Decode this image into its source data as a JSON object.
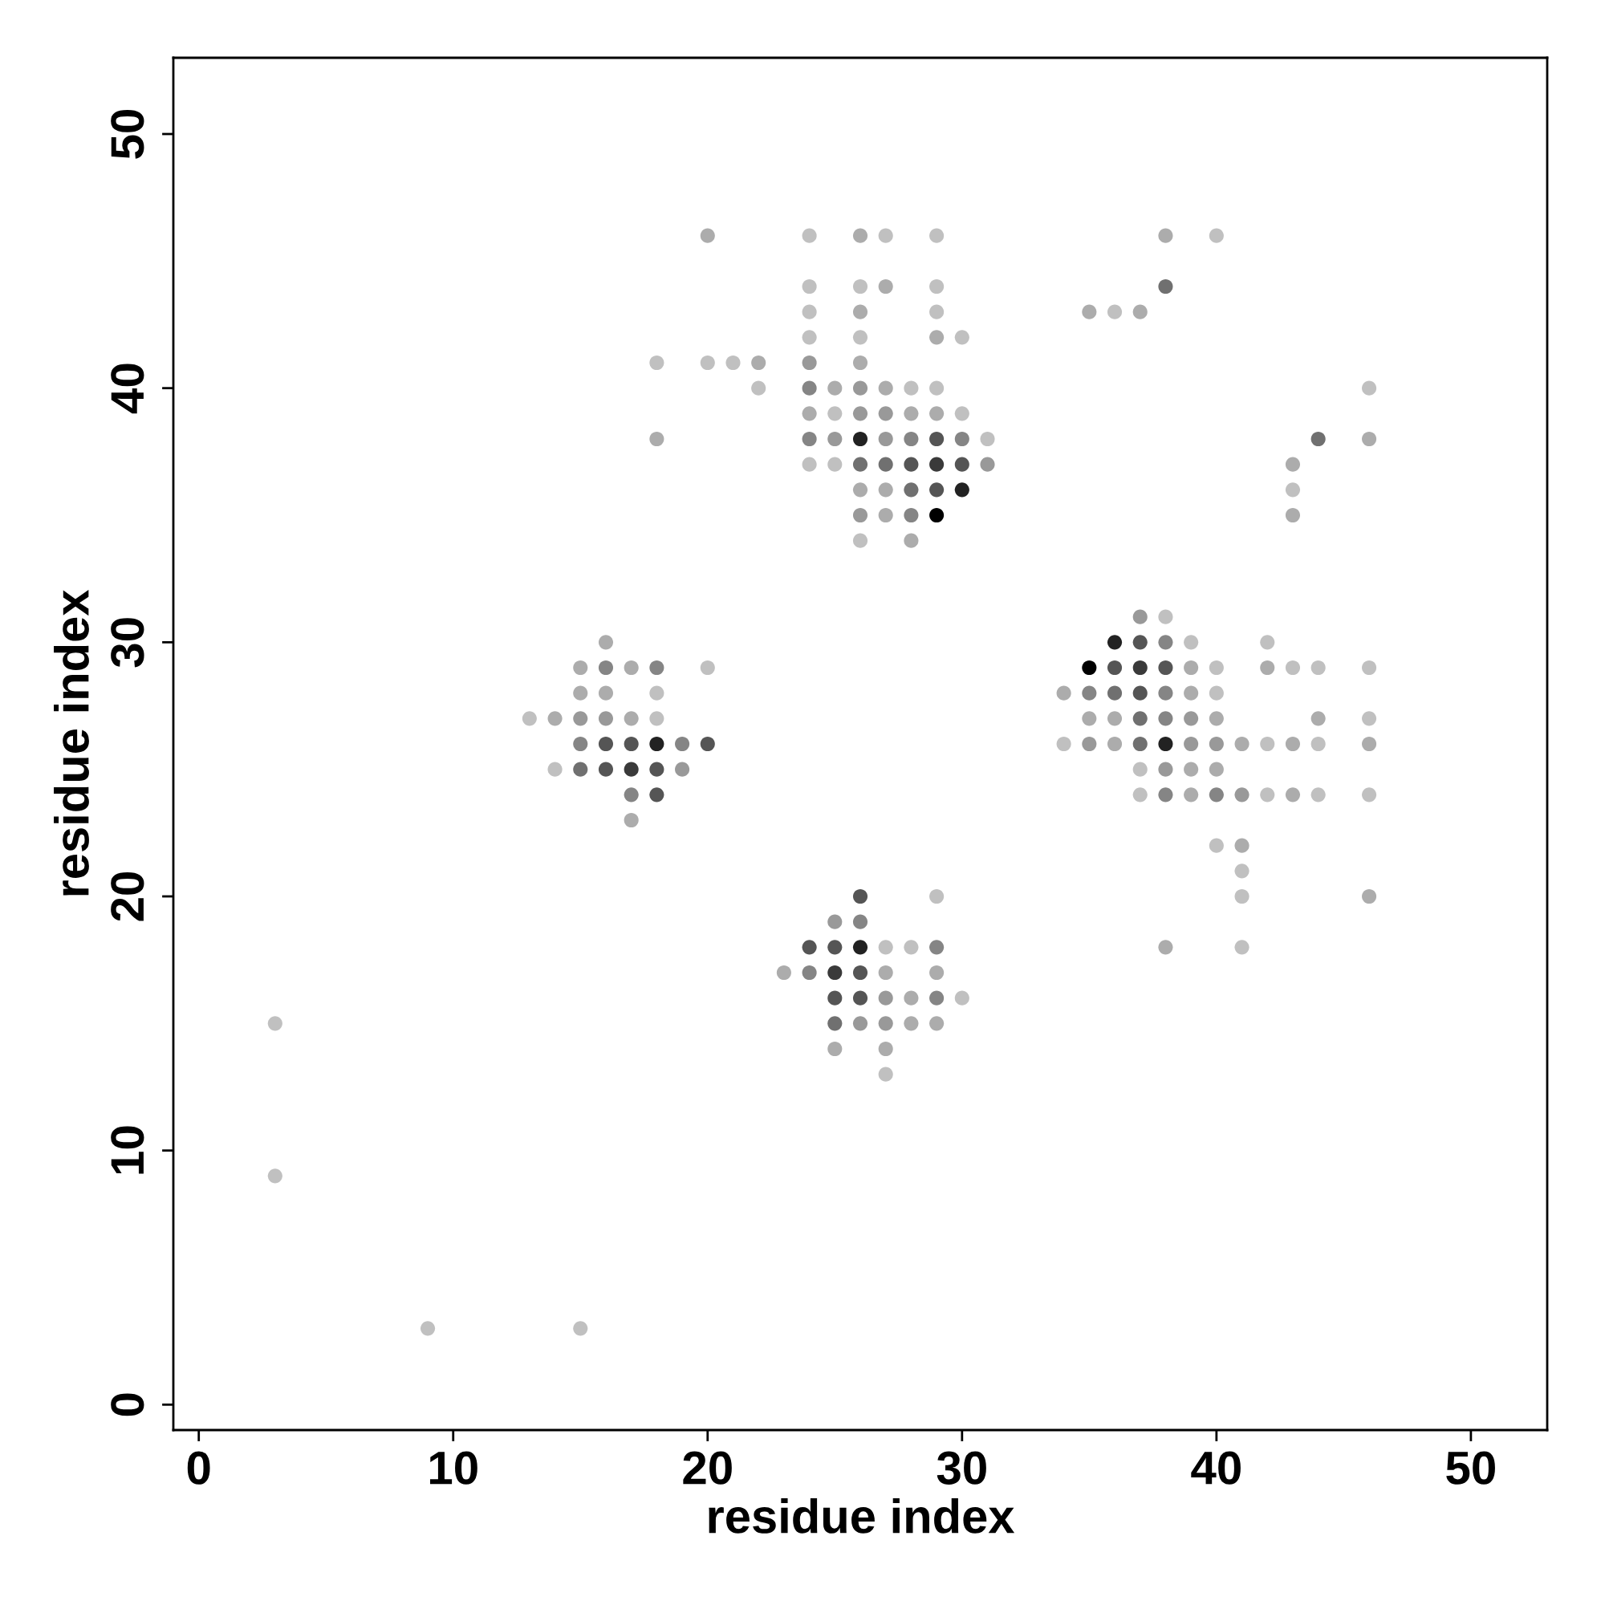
{
  "chart_data": {
    "type": "scatter",
    "xlabel": "residue index",
    "ylabel": "residue index",
    "xlim": [
      -1,
      53
    ],
    "ylim": [
      -1,
      53
    ],
    "xticks": [
      0,
      10,
      20,
      30,
      40,
      50
    ],
    "yticks": [
      0,
      10,
      20,
      30,
      40,
      50
    ],
    "grid": false,
    "marker": "circle",
    "series": [
      {
        "color": "#c0c0c0",
        "x": [
          24,
          27,
          29,
          24,
          26,
          29,
          24,
          29,
          24,
          26,
          30,
          18,
          20,
          21,
          22,
          28,
          29,
          25,
          30,
          31,
          24,
          25,
          26,
          40,
          36,
          46,
          43,
          38,
          39,
          42,
          40,
          43,
          44,
          46,
          40,
          46,
          34,
          42,
          44,
          37,
          37,
          42,
          44,
          46,
          40,
          41,
          41,
          41,
          20,
          18,
          13,
          18,
          14,
          29,
          27,
          28,
          30,
          27,
          3,
          3,
          9,
          15
        ],
        "values": [
          46,
          46,
          46,
          44,
          44,
          44,
          43,
          43,
          42,
          42,
          42,
          41,
          41,
          41,
          40,
          40,
          40,
          39,
          39,
          38,
          37,
          37,
          34,
          46,
          43,
          40,
          36,
          31,
          30,
          30,
          29,
          29,
          29,
          29,
          28,
          27,
          26,
          26,
          26,
          25,
          24,
          24,
          24,
          24,
          22,
          21,
          20,
          18,
          29,
          28,
          27,
          27,
          25,
          20,
          18,
          18,
          16,
          13,
          15,
          9,
          3,
          3
        ]
      },
      {
        "color": "#acacac",
        "x": [
          20,
          26,
          27,
          26,
          29,
          22,
          26,
          25,
          27,
          24,
          28,
          29,
          18,
          26,
          27,
          27,
          28,
          38,
          35,
          37,
          46,
          43,
          43,
          39,
          42,
          34,
          39,
          35,
          36,
          40,
          44,
          36,
          41,
          43,
          46,
          39,
          40,
          39,
          43,
          41,
          46,
          38,
          16,
          15,
          17,
          15,
          16,
          14,
          17,
          17,
          23,
          27,
          29,
          28,
          28,
          29,
          25,
          27
        ],
        "values": [
          46,
          46,
          44,
          43,
          42,
          41,
          41,
          40,
          40,
          39,
          39,
          39,
          38,
          36,
          36,
          35,
          34,
          46,
          43,
          43,
          38,
          37,
          35,
          29,
          29,
          28,
          28,
          27,
          27,
          27,
          27,
          26,
          26,
          26,
          26,
          25,
          25,
          24,
          24,
          22,
          20,
          18,
          30,
          29,
          29,
          28,
          28,
          27,
          27,
          23,
          17,
          17,
          17,
          16,
          15,
          15,
          14,
          14
        ]
      },
      {
        "color": "#999999",
        "x": [
          24,
          26,
          26,
          27,
          25,
          27,
          31,
          26,
          37,
          39,
          35,
          39,
          40,
          38,
          41,
          15,
          16,
          19,
          25,
          27,
          26,
          27
        ],
        "values": [
          41,
          40,
          39,
          39,
          38,
          38,
          37,
          35,
          31,
          27,
          26,
          26,
          26,
          25,
          24,
          27,
          27,
          25,
          19,
          16,
          15,
          15
        ]
      },
      {
        "color": "#858585",
        "x": [
          24,
          24,
          28,
          30,
          28,
          38,
          35,
          38,
          38,
          38,
          40,
          16,
          18,
          15,
          19,
          17,
          26,
          29,
          24,
          29
        ],
        "values": [
          40,
          38,
          38,
          38,
          35,
          30,
          28,
          28,
          27,
          24,
          24,
          29,
          29,
          26,
          26,
          24,
          19,
          18,
          17,
          16
        ]
      },
      {
        "color": "#707070",
        "x": [
          26,
          27,
          28,
          38,
          44,
          36,
          37,
          37,
          15,
          25
        ],
        "values": [
          37,
          37,
          36,
          44,
          38,
          28,
          27,
          26,
          25,
          15
        ]
      },
      {
        "color": "#555555",
        "x": [
          29,
          28,
          30,
          29,
          37,
          36,
          38,
          37,
          16,
          17,
          20,
          16,
          18,
          18,
          26,
          24,
          25,
          26,
          25,
          26
        ],
        "values": [
          38,
          37,
          37,
          36,
          30,
          29,
          29,
          28,
          26,
          26,
          26,
          25,
          25,
          24,
          20,
          18,
          18,
          17,
          16,
          16
        ]
      },
      {
        "color": "#3a3a3a",
        "x": [
          29,
          37,
          17,
          25
        ],
        "values": [
          37,
          29,
          25,
          17
        ]
      },
      {
        "color": "#222222",
        "x": [
          26,
          30,
          36,
          38,
          18,
          26
        ],
        "values": [
          38,
          36,
          30,
          26,
          26,
          18
        ]
      },
      {
        "color": "#000000",
        "x": [
          29,
          35
        ],
        "values": [
          35,
          29
        ]
      }
    ]
  }
}
